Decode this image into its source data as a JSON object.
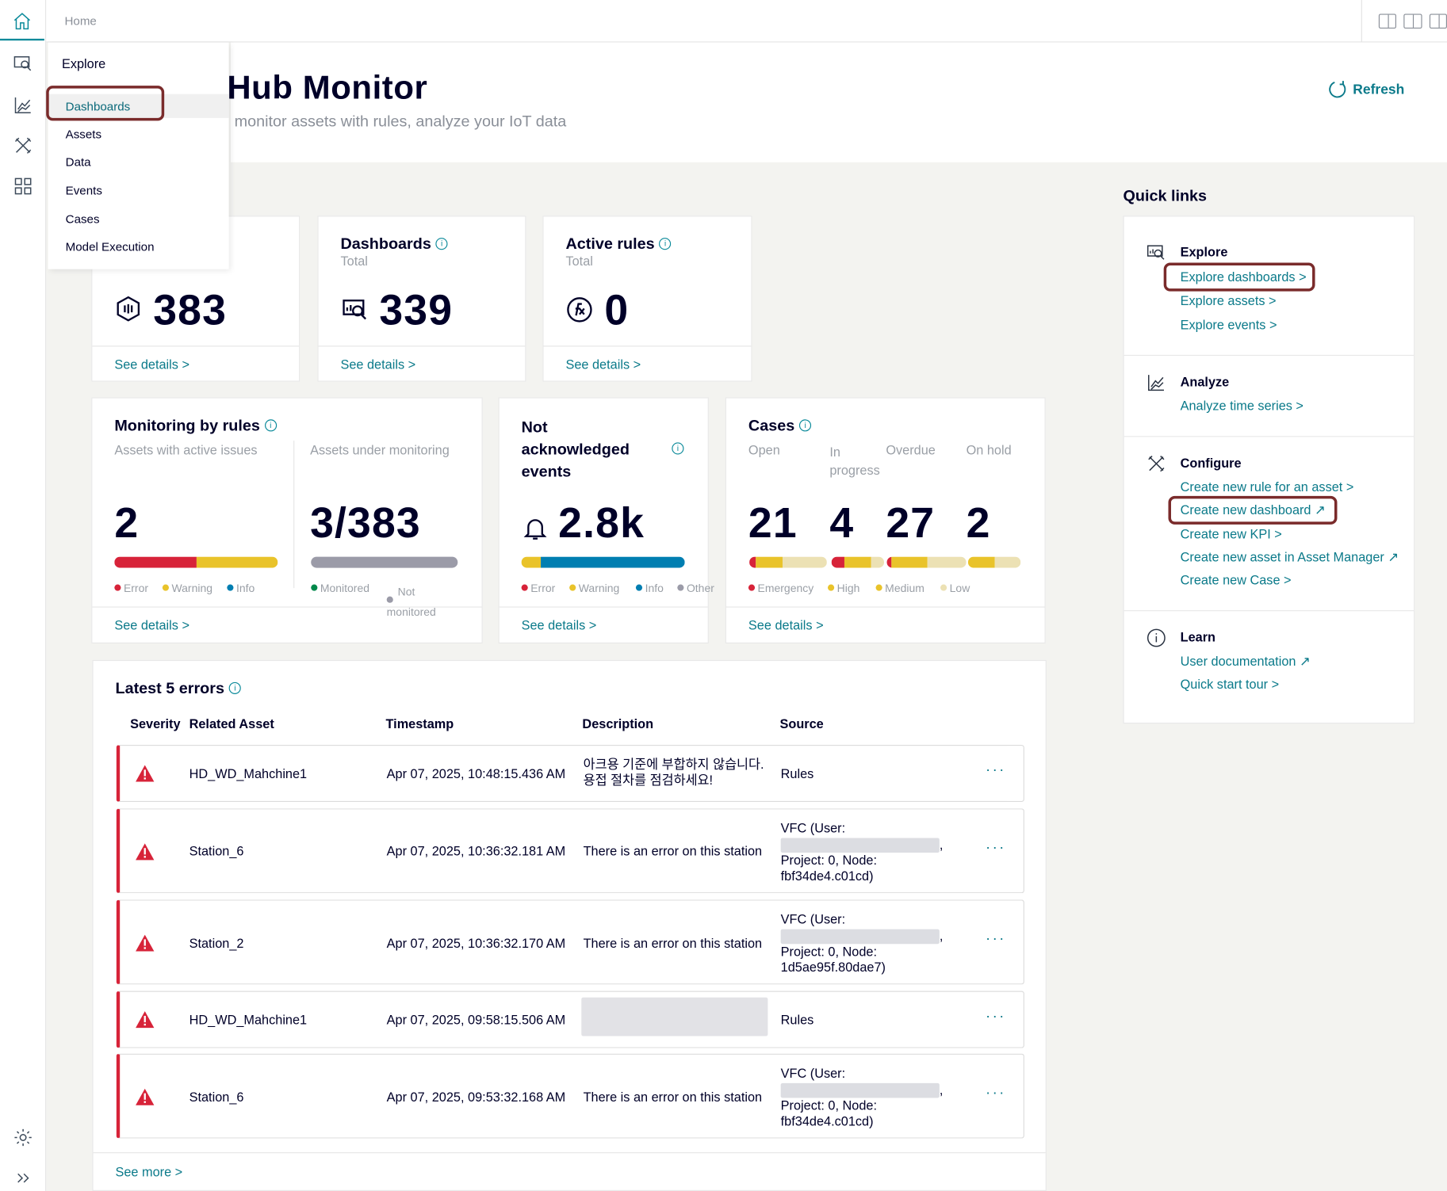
{
  "breadcrumb": "Home",
  "flyout": {
    "title": "Explore",
    "items": [
      "Dashboards",
      "Assets",
      "Data",
      "Events",
      "Cases",
      "Model Execution"
    ],
    "selected": "Dashboards"
  },
  "header": {
    "title": "Hub Monitor",
    "subtitle": "monitor assets with rules, analyze your IoT data",
    "refresh_label": "Refresh"
  },
  "kpi_cards": [
    {
      "title": "",
      "subtitle": "",
      "value": "383",
      "link": "See details >",
      "icon": "asset-icon"
    },
    {
      "title": "Dashboards",
      "subtitle": "Total",
      "value": "339",
      "link": "See details >",
      "icon": "dashboard-icon"
    },
    {
      "title": "Active rules",
      "subtitle": "Total",
      "value": "0",
      "link": "See details >",
      "icon": "function-icon"
    }
  ],
  "monitoring": {
    "title": "Monitoring by rules",
    "left_sub": "Assets with active issues",
    "left_value": "2",
    "right_sub": "Assets under monitoring",
    "right_value": "3/383",
    "left_legend": [
      "Error",
      "Warning",
      "Info"
    ],
    "right_legend": [
      "Monitored",
      "Not monitored"
    ],
    "left_bar": [
      {
        "pct": 0.5,
        "color": "#d72339"
      },
      {
        "pct": 0.5,
        "color": "#e9c32a"
      }
    ],
    "link": "See details >"
  },
  "not_ack": {
    "title": "Not acknowledged events",
    "value": "2.8k",
    "legend": [
      "Error",
      "Warning",
      "Info",
      "Other"
    ],
    "bar": [
      {
        "pct": 0.12,
        "color": "#e9c32a"
      },
      {
        "pct": 0.88,
        "color": "#007eb1"
      }
    ],
    "link": "See details >"
  },
  "cases": {
    "title": "Cases",
    "columns": [
      "Open",
      "In progress",
      "Overdue",
      "On hold"
    ],
    "values": [
      "21",
      "4",
      "27",
      "2"
    ],
    "legend": [
      "Emergency",
      "High",
      "Medium",
      "Low"
    ],
    "link": "See details >"
  },
  "errors": {
    "title": "Latest 5 errors",
    "columns": [
      "Severity",
      "Related Asset",
      "Timestamp",
      "Description",
      "Source"
    ],
    "rows": [
      {
        "asset": "HD_WD_Mahchine1",
        "timestamp": "Apr 07, 2025, 10:48:15.436 AM",
        "description": "아크용 기준에 부합하지 않습니다. 용접 절차를 점검하세요!",
        "source": "Rules"
      },
      {
        "asset": "Station_6",
        "timestamp": "Apr 07, 2025, 10:36:32.181 AM",
        "description": "There is an error on this station",
        "source_l1": "VFC (User:",
        "source_l2": "Project: 0, Node:",
        "source_l3": "fbf34de4.c01cd)"
      },
      {
        "asset": "Station_2",
        "timestamp": "Apr 07, 2025, 10:36:32.170 AM",
        "description": "There is an error on this station",
        "source_l1": "VFC (User:",
        "source_l2": "Project: 0, Node:",
        "source_l3": "1d5ae95f.80dae7)"
      },
      {
        "asset": "HD_WD_Mahchine1",
        "timestamp": "Apr 07, 2025, 09:58:15.506 AM",
        "description": "",
        "source": "Rules"
      },
      {
        "asset": "Station_6",
        "timestamp": "Apr 07, 2025, 09:53:32.168 AM",
        "description": "There is an error on this station",
        "source_l1": "VFC (User:",
        "source_l2": "Project: 0, Node:",
        "source_l3": "fbf34de4.c01cd)"
      }
    ],
    "see_more": "See more >"
  },
  "quick_links": {
    "title": "Quick links",
    "sections": [
      {
        "title": "Explore",
        "icon": "explore-icon",
        "links": [
          "Explore dashboards >",
          "Explore assets >",
          "Explore events >"
        ]
      },
      {
        "title": "Analyze",
        "icon": "analyze-icon",
        "links": [
          "Analyze time series >"
        ]
      },
      {
        "title": "Configure",
        "icon": "configure-icon",
        "links": [
          "Create new rule for an asset >",
          "Create new dashboard ↗",
          "Create new KPI >",
          "Create new asset in Asset Manager ↗",
          "Create new Case >"
        ]
      },
      {
        "title": "Learn",
        "icon": "info-icon",
        "links": [
          "User documentation ↗",
          "Quick start tour >"
        ]
      }
    ]
  },
  "colors": {
    "accent": "#0b7a8a",
    "error": "#d72339",
    "warning": "#e9c32a",
    "info": "#007eb1",
    "highlight": "#7a2b2b"
  }
}
